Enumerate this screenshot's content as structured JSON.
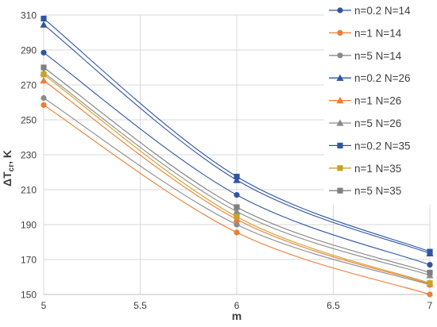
{
  "chart_data": {
    "type": "line",
    "title": "",
    "xlabel": "m",
    "ylabel": "ΔT",
    "ylabel_sub": "cr",
    "ylabel_unit": ", K",
    "x": [
      5,
      6,
      7
    ],
    "xlim": [
      5,
      7
    ],
    "ylim": [
      150,
      310
    ],
    "xticks": [
      "5",
      "5.5",
      "6",
      "6.5",
      "7"
    ],
    "xtick_values": [
      5,
      5.5,
      6,
      6.5,
      7
    ],
    "yticks": [
      "150",
      "170",
      "190",
      "210",
      "230",
      "250",
      "270",
      "290",
      "310"
    ],
    "ytick_values": [
      150,
      170,
      190,
      210,
      230,
      250,
      270,
      290,
      310
    ],
    "grid": true,
    "legend_position": "right",
    "series": [
      {
        "name": "n=0.2 N=14",
        "values": [
          288.5,
          207,
          167
        ],
        "color": "#2f55a4",
        "marker": "circle"
      },
      {
        "name": "n=1 N=14",
        "values": [
          258.5,
          185.5,
          150
        ],
        "color": "#ed7d31",
        "marker": "circle"
      },
      {
        "name": "n=5 N=14",
        "values": [
          262.5,
          190,
          155.5
        ],
        "color": "#8c8c8c",
        "marker": "circle"
      },
      {
        "name": "n=0.2 N=26",
        "values": [
          304.5,
          215.5,
          173.5
        ],
        "color": "#2f55a4",
        "marker": "triangle"
      },
      {
        "name": "n=1 N=26",
        "values": [
          272.5,
          193,
          156
        ],
        "color": "#ed7d31",
        "marker": "triangle"
      },
      {
        "name": "n=5 N=26",
        "values": [
          277,
          197.5,
          161
        ],
        "color": "#8c8c8c",
        "marker": "triangle"
      },
      {
        "name": "n=0.2 N=35",
        "values": [
          308,
          217.5,
          174.5
        ],
        "color": "#2f55a4",
        "marker": "square"
      },
      {
        "name": "n=1 N=35",
        "values": [
          276,
          194.5,
          156.5
        ],
        "color": "#c9a227",
        "marker": "square"
      },
      {
        "name": "n=5 N=35",
        "values": [
          280,
          200,
          162.5
        ],
        "color": "#808080",
        "marker": "square"
      }
    ]
  }
}
